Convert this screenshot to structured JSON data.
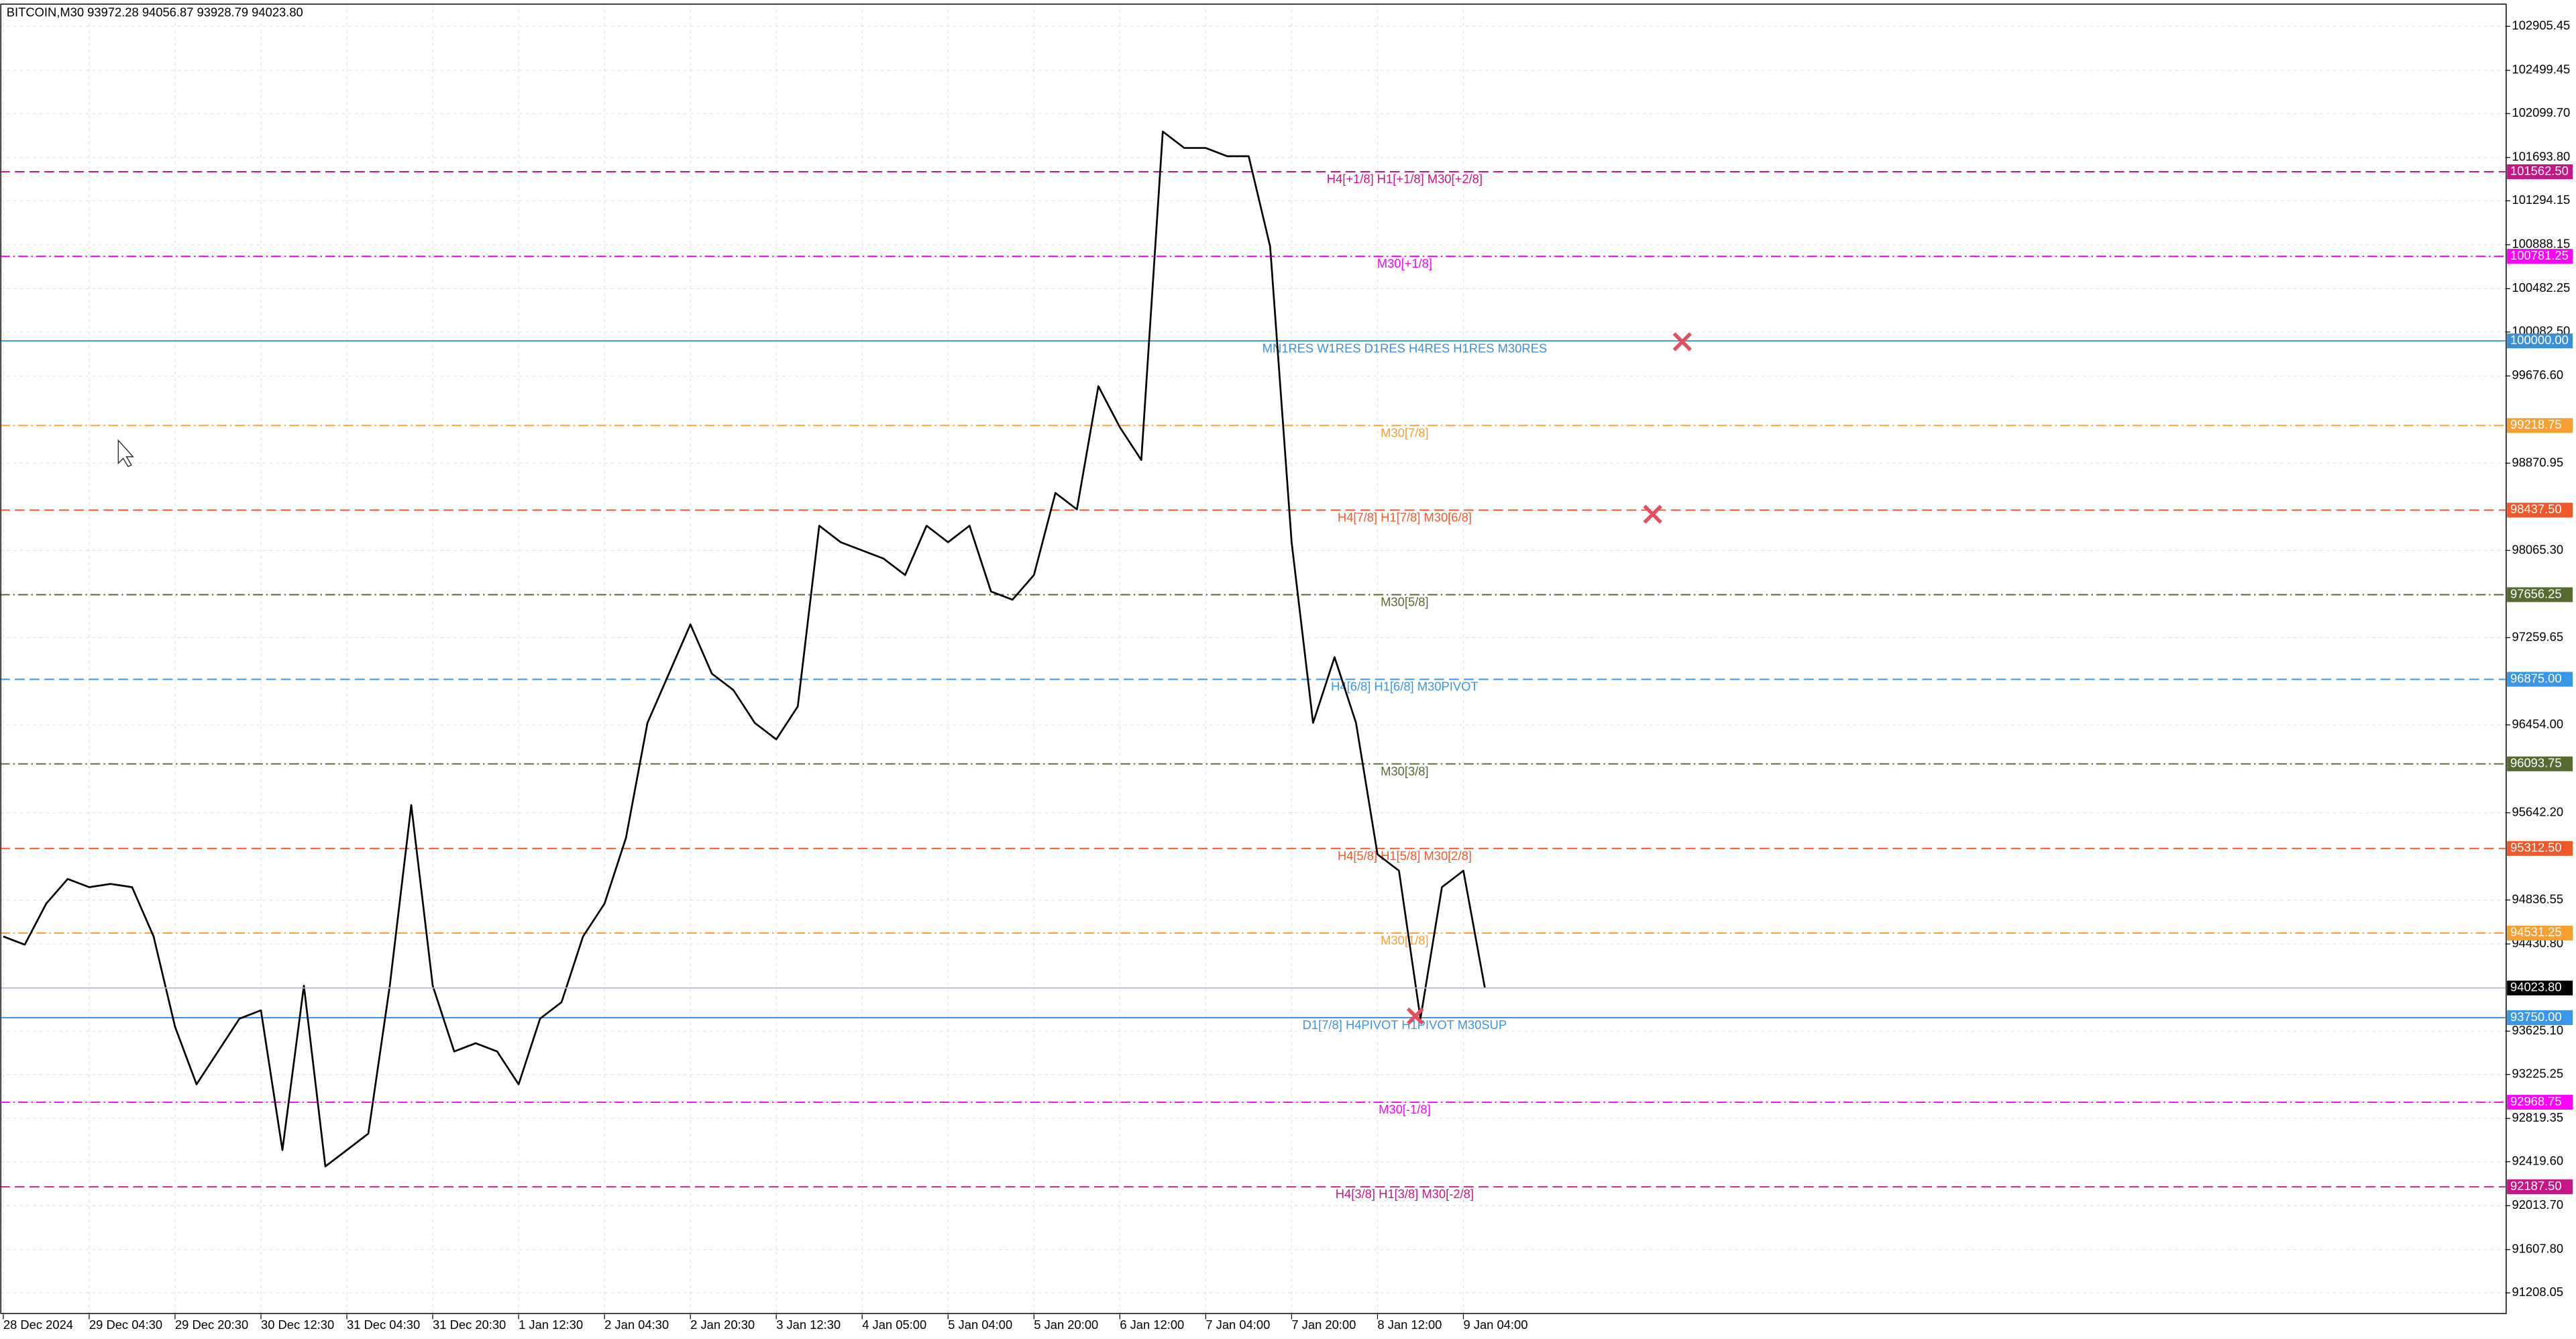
{
  "chart_data": {
    "type": "line",
    "title": "BITCOIN,M30  93972.28 94056.87 93928.79 94023.80",
    "color": "#000000",
    "categories": [
      "28 Dec 2024",
      null,
      null,
      null,
      "29 Dec 04:30",
      null,
      null,
      null,
      "29 Dec 20:30",
      null,
      null,
      null,
      "30 Dec 12:30",
      null,
      null,
      null,
      "31 Dec 04:30",
      null,
      null,
      null,
      "31 Dec 20:30",
      null,
      null,
      null,
      "1 Jan 12:30",
      null,
      null,
      null,
      "2 Jan 04:30",
      null,
      null,
      null,
      "2 Jan 20:30",
      null,
      null,
      null,
      "3 Jan 12:30",
      null,
      null,
      null,
      "4 Jan 05:00",
      null,
      null,
      null,
      "5 Jan 04:00",
      null,
      null,
      null,
      "5 Jan 20:00",
      null,
      null,
      null,
      "6 Jan 12:00",
      null,
      null,
      null,
      "7 Jan 04:00",
      null,
      null,
      null,
      "7 Jan 20:00",
      null,
      null,
      null,
      "8 Jan 12:00",
      null,
      null,
      null,
      "9 Jan 04:00",
      null
    ],
    "values": [
      94500,
      94424,
      94803,
      95031,
      94955,
      94985,
      94955,
      94500,
      93665,
      93134,
      93438,
      93741,
      93817,
      92527,
      94045,
      92376,
      92527,
      92679,
      94045,
      95713,
      94045,
      93438,
      93514,
      93438,
      93134,
      93741,
      93893,
      94500,
      94803,
      95410,
      96472,
      96927,
      97382,
      96927,
      96776,
      96472,
      96320,
      96624,
      98293,
      98141,
      98065,
      97989,
      97838,
      98293,
      98141,
      98293,
      97686,
      97610,
      97838,
      98596,
      98444,
      99582,
      99203,
      98900,
      101934,
      101782,
      101782,
      101706,
      101706,
      100872,
      98141,
      96472,
      97079,
      96472,
      95258,
      95107,
      93741,
      94955,
      95107,
      94024
    ],
    "ylim": [
      91010,
      103118
    ],
    "yticks": [
      102905.45,
      102499.45,
      {
        "value": 102099.7,
        "label": "102099.70"
      },
      {
        "value": 101693.8,
        "label": "101693.80"
      },
      101294.15,
      100888.15,
      100482.25,
      {
        "value": 100082.5,
        "label": "100082.50"
      },
      {
        "value": 99676.6,
        "label": "99676.60"
      },
      98870.95,
      {
        "value": 98065.3,
        "label": "98065.30"
      },
      97259.65,
      {
        "value": 96454,
        "label": "96454.00"
      },
      {
        "value": 95642.2,
        "label": "95642.20"
      },
      94836.55,
      {
        "value": 94430.8,
        "label": "94430.80"
      },
      {
        "value": 93625.1,
        "label": "93625.10"
      },
      93225.25,
      92819.35,
      {
        "value": 92419.6,
        "label": "92419.60"
      },
      {
        "value": 92013.7,
        "label": "92013.70"
      },
      {
        "value": 91607.8,
        "label": "91607.80"
      },
      91208.05
    ],
    "grid": true,
    "current_price": {
      "value": 94023.8,
      "price_label": "94023.80"
    },
    "levels": [
      {
        "value": 101562.5,
        "price_label": "101562.50",
        "label": "H4[+1/8] H1[+1/8] M30[+2/8]",
        "color": "#c71585",
        "style": "dash"
      },
      {
        "value": 100781.25,
        "price_label": "100781.25",
        "label": "M30[+1/8]",
        "color": "#ff00ff",
        "style": "dashdot"
      },
      {
        "value": 100000,
        "price_label": "100000.00",
        "label": "MN1RES W1RES D1RES H4RES H1RES M30RES",
        "color": "#3a8fd6",
        "style": "solid"
      },
      {
        "value": 99218.75,
        "price_label": "99218.75",
        "label": "M30[7/8]",
        "color": "#f5a030",
        "style": "dashdot"
      },
      {
        "value": 98437.5,
        "price_label": "98437.50",
        "label": "H4[7/8] H1[7/8] M30[6/8]",
        "color": "#f0582a",
        "style": "dash"
      },
      {
        "value": 97656.25,
        "price_label": "97656.25",
        "label": "M30[5/8]",
        "color": "#556b2f",
        "style": "dashdot"
      },
      {
        "value": 96875,
        "price_label": "96875.00",
        "label": "H4[6/8] H1[6/8] M30PIVOT",
        "color": "#3a96e6",
        "style": "dash"
      },
      {
        "value": 96093.75,
        "price_label": "96093.75",
        "label": "M30[3/8]",
        "color": "#556b2f",
        "style": "dashdot"
      },
      {
        "value": 95312.5,
        "price_label": "95312.50",
        "label": "H4[5/8] H1[5/8] M30[2/8]",
        "color": "#f0582a",
        "style": "dash"
      },
      {
        "value": 94531.25,
        "price_label": "94531.25",
        "label": "M30[1/8]",
        "color": "#f5a030",
        "style": "dashdot"
      },
      {
        "value": 93750,
        "price_label": "93750.00",
        "label": "D1[7/8] H4PIVOT H1PIVOT M30SUP",
        "color": "#3a96e6",
        "style": "solid"
      },
      {
        "value": 92968.75,
        "price_label": "92968.75",
        "label": "M30[-1/8]",
        "color": "#ff00ff",
        "style": "dashdot"
      },
      {
        "value": 92187.5,
        "price_label": "92187.50",
        "label": "H4[3/8] H1[3/8] M30[-2/8]",
        "color": "#c71585",
        "style": "dash"
      }
    ]
  }
}
